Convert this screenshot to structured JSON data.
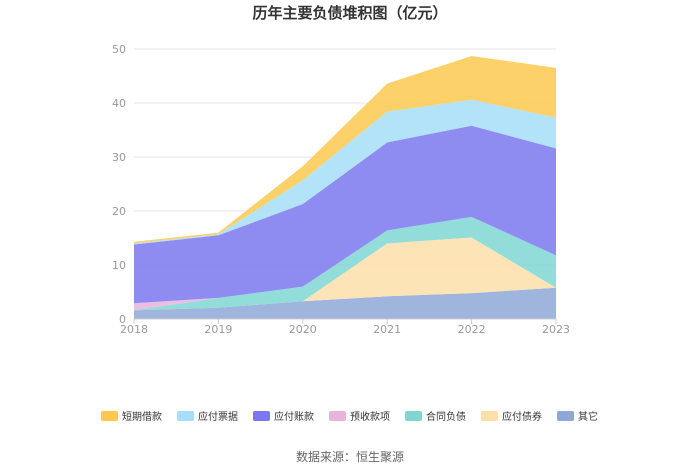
{
  "chart_data": {
    "type": "area",
    "stacked": true,
    "title": "历年主要负债堆积图（亿元）",
    "x": [
      "2018",
      "2019",
      "2020",
      "2021",
      "2022",
      "2023"
    ],
    "ylim": [
      0,
      50
    ],
    "yticks": [
      "0",
      "10",
      "20",
      "30",
      "40",
      "50"
    ],
    "grid": "horizontal",
    "legend_position": "bottom",
    "series": [
      {
        "name": "其它",
        "color": "#8fa8d8",
        "values": [
          1.6,
          2.1,
          3.3,
          4.2,
          4.8,
          5.8
        ]
      },
      {
        "name": "应付债券",
        "color": "#fddfa9",
        "values": [
          0,
          0,
          0,
          9.8,
          10.3,
          0
        ]
      },
      {
        "name": "合同负债",
        "color": "#7fd6d3",
        "values": [
          0,
          1.8,
          2.7,
          2.4,
          3.8,
          6.0
        ]
      },
      {
        "name": "预收款项",
        "color": "#e8b3de",
        "values": [
          1.3,
          0,
          0,
          0,
          0,
          0
        ]
      },
      {
        "name": "应付账款",
        "color": "#7b78ef",
        "values": [
          10.9,
          11.6,
          15.3,
          16.3,
          16.9,
          19.8
        ]
      },
      {
        "name": "应付票据",
        "color": "#a6def7",
        "values": [
          0.2,
          0.2,
          4.4,
          5.7,
          4.8,
          5.7
        ]
      },
      {
        "name": "短期借款",
        "color": "#fdc94f",
        "values": [
          0.3,
          0.3,
          2.6,
          5.2,
          8.1,
          9.2
        ]
      }
    ],
    "legend_order": [
      "短期借款",
      "应付票据",
      "应付账款",
      "预收款项",
      "合同负债",
      "应付债券",
      "其它"
    ]
  },
  "source": "数据来源：恒生聚源"
}
